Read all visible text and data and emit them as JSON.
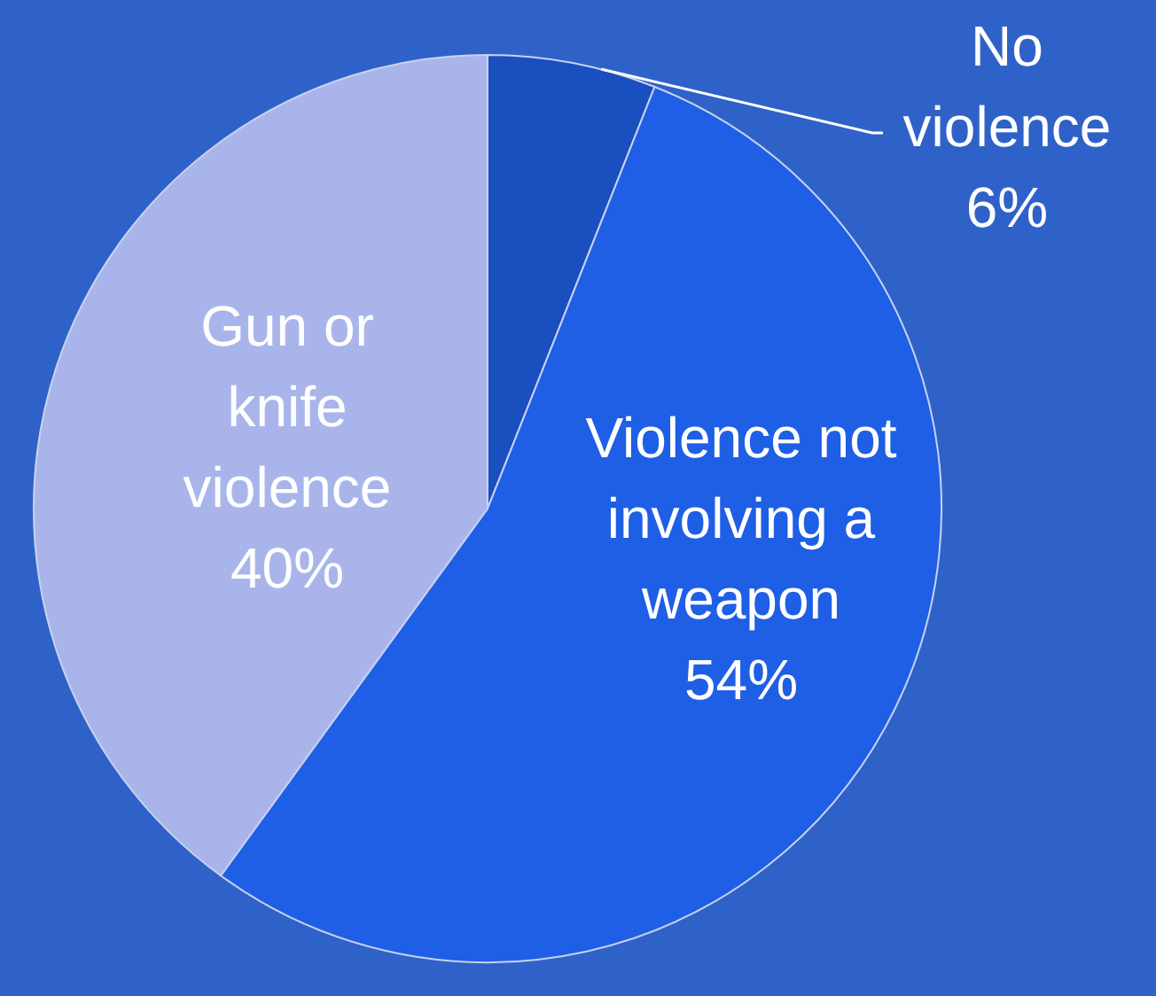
{
  "chart_data": {
    "type": "pie",
    "categories": [
      "No violence",
      "Violence not involving a weapon",
      "Gun or knife violence"
    ],
    "values": [
      6,
      54,
      40
    ],
    "value_labels": [
      "6%",
      "54%",
      "40%"
    ],
    "colors": [
      "#1a4fc0",
      "#1f5fe6",
      "#a9b5ea"
    ]
  }
}
